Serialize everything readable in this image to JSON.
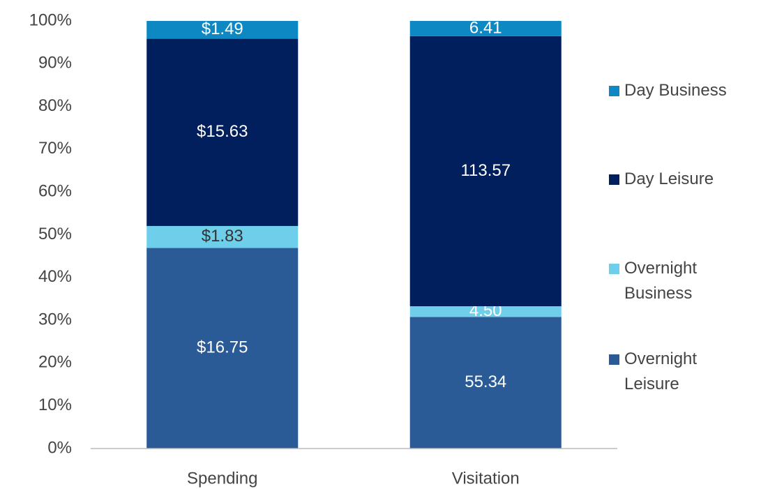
{
  "chart_data": {
    "type": "bar",
    "stacking": "percent",
    "categories": [
      "Spending",
      "Visitation"
    ],
    "series": [
      {
        "name": "Overnight Leisure",
        "color": "#2a5b96",
        "values": [
          16.75,
          55.34
        ],
        "value_labels": [
          "$16.75",
          "55.34"
        ]
      },
      {
        "name": "Overnight Business",
        "color": "#6fcfeb",
        "values": [
          1.83,
          4.5
        ],
        "value_labels": [
          "$1.83",
          "4.50"
        ]
      },
      {
        "name": "Day Leisure",
        "color": "#001f5c",
        "values": [
          15.63,
          113.57
        ],
        "value_labels": [
          "$15.63",
          "113.57"
        ]
      },
      {
        "name": "Day Business",
        "color": "#0e88c2",
        "values": [
          1.49,
          6.41
        ],
        "value_labels": [
          "$1.49",
          "6.41"
        ]
      }
    ],
    "ylim": [
      0,
      100
    ],
    "yticks": [
      {
        "value": 0,
        "label": "0%"
      },
      {
        "value": 10,
        "label": "10%"
      },
      {
        "value": 20,
        "label": "20%"
      },
      {
        "value": 30,
        "label": "30%"
      },
      {
        "value": 40,
        "label": "40%"
      },
      {
        "value": 50,
        "label": "50%"
      },
      {
        "value": 60,
        "label": "60%"
      },
      {
        "value": 70,
        "label": "70%"
      },
      {
        "value": 80,
        "label": "80%"
      },
      {
        "value": 90,
        "label": "90%"
      },
      {
        "value": 100,
        "label": "100%"
      }
    ],
    "legend": "right",
    "legend_order": "reverse"
  }
}
